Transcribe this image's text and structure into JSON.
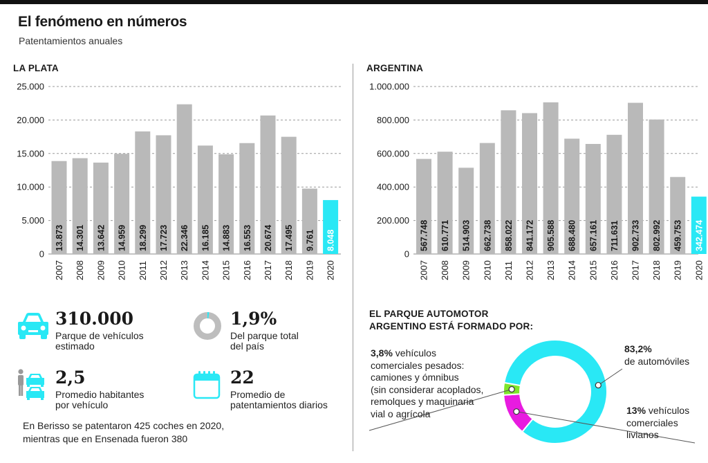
{
  "header": {
    "title": "El fenómeno en números",
    "subtitle": "Patentamientos anuales"
  },
  "chart_data": [
    {
      "type": "bar",
      "title": "LA PLATA",
      "categories": [
        "2007",
        "2008",
        "2009",
        "2010",
        "2011",
        "2012",
        "2013",
        "2014",
        "2015",
        "2016",
        "2017",
        "2018",
        "2019",
        "2020"
      ],
      "values": [
        13873,
        14301,
        13642,
        14959,
        18299,
        17723,
        22346,
        16185,
        14883,
        16553,
        20674,
        17495,
        9761,
        8048
      ],
      "value_labels": [
        "13.873",
        "14.301",
        "13.642",
        "14.959",
        "18.299",
        "17.723",
        "22.346",
        "16.185",
        "14.883",
        "16.553",
        "20.674",
        "17.495",
        "9.761",
        "8.048"
      ],
      "yticks": [
        0,
        5000,
        10000,
        15000,
        20000,
        25000
      ],
      "ytick_labels": [
        "0",
        "5.000",
        "10.000",
        "15.000",
        "20.000",
        "25.000"
      ],
      "ylim": [
        0,
        25000
      ],
      "grid": true,
      "highlight_category": "2020",
      "xlabel": "",
      "ylabel": ""
    },
    {
      "type": "bar",
      "title": "ARGENTINA",
      "categories": [
        "2007",
        "2008",
        "2009",
        "2010",
        "2011",
        "2012",
        "2013",
        "2014",
        "2015",
        "2016",
        "2017",
        "2018",
        "2019",
        "2020"
      ],
      "values": [
        567748,
        610771,
        514903,
        662738,
        858022,
        841172,
        905588,
        688480,
        657161,
        711631,
        902733,
        802992,
        459753,
        342474
      ],
      "value_labels": [
        "567.748",
        "610.771",
        "514.903",
        "662.738",
        "858.022",
        "841.172",
        "905.588",
        "688.480",
        "657.161",
        "711.631",
        "902.733",
        "802.992",
        "459.753",
        "342.474"
      ],
      "yticks": [
        0,
        200000,
        400000,
        600000,
        800000,
        1000000
      ],
      "ytick_labels": [
        "0",
        "200.000",
        "400.000",
        "600.000",
        "800.000",
        "1.000.000"
      ],
      "ylim": [
        0,
        1000000
      ],
      "grid": true,
      "highlight_category": "2020",
      "xlabel": "",
      "ylabel": ""
    },
    {
      "type": "pie",
      "title": "EL PARQUE AUTOMOTOR ARGENTINO ESTÁ FORMADO POR:",
      "categories": [
        "automóviles",
        "vehículos comerciales livianos",
        "vehículos comerciales pesados"
      ],
      "values": [
        83.2,
        13,
        3.8
      ],
      "donut": true
    }
  ],
  "colors": {
    "bar": "#b9b9b9",
    "highlight": "#29e8f5",
    "donut_autos": "#29e8f5",
    "donut_livianos": "#e81be0",
    "donut_pesados": "#7ee52a",
    "grid": "#9a9a9a",
    "text": "#1a1a1a"
  },
  "stats": {
    "parque": {
      "value": "310.000",
      "desc_line1": "Parque de vehículos",
      "desc_line2": "estimado",
      "icon": "car-icon"
    },
    "porcentaje": {
      "value": "1,9%",
      "desc_line1": "Del parque total",
      "desc_line2": "del país",
      "icon": "ring-gauge-icon",
      "fraction": 0.019
    },
    "habitantes": {
      "value": "2,5",
      "desc_line1": "Promedio habitantes",
      "desc_line2": "por vehículo",
      "icon": "people-cars-icon"
    },
    "diarios": {
      "value": "22",
      "desc_line1": "Promedio de",
      "desc_line2": "patentamientos diarios",
      "icon": "calendar-icon"
    }
  },
  "note": {
    "line1": "En Berisso se patentaron 425 coches en 2020,",
    "line2": "mientras que en Ensenada fueron 380"
  },
  "donut": {
    "head_line1": "EL PARQUE AUTOMOTOR",
    "head_line2": "ARGENTINO ESTÁ FORMADO POR:",
    "autos": {
      "pct": "83,2%",
      "line1": "de automóviles"
    },
    "livianos": {
      "pct": "13%",
      "pct_rest": " vehículos",
      "line2": "comerciales",
      "line3": "livianos"
    },
    "pesados": {
      "pct": "3,8%",
      "pct_rest": " vehículos",
      "line2": "comerciales pesados:",
      "line3": "camiones y ómnibus",
      "line4": "(sin considerar acoplados,",
      "line5": "remolques y maquinaria",
      "line6": "vial o agrícola"
    }
  }
}
